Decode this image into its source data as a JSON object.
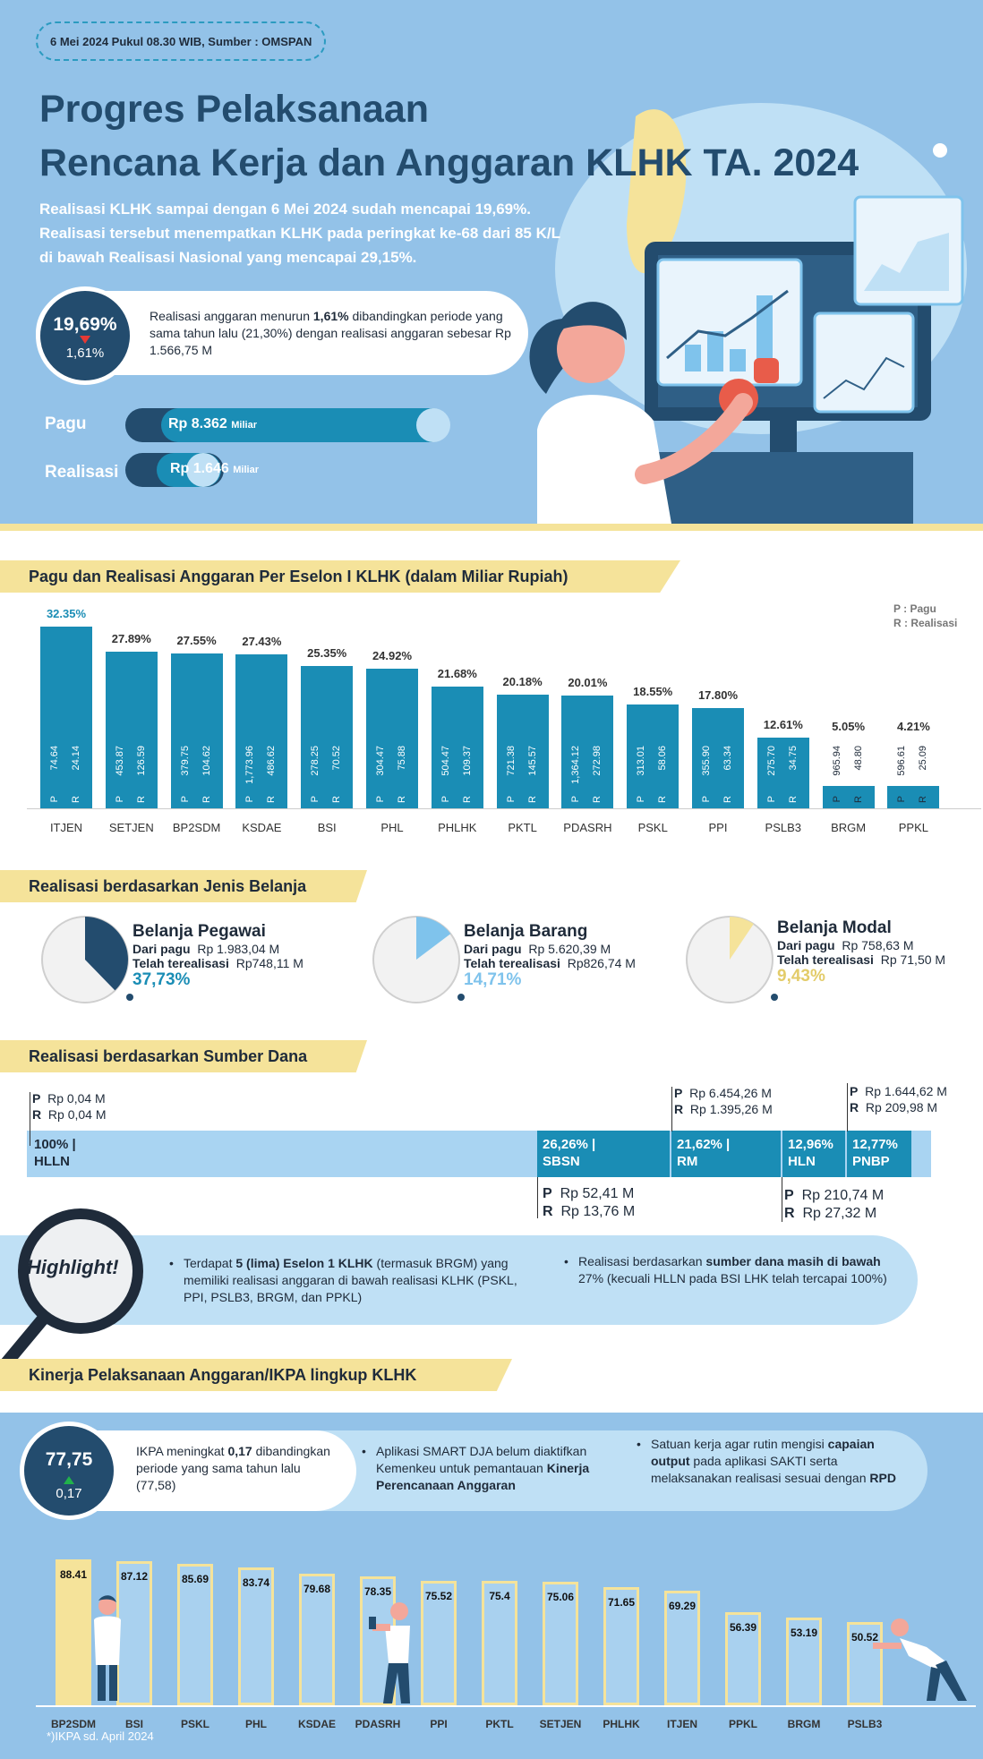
{
  "header": {
    "date_source": "6 Mei 2024 Pukul 08.30 WIB, Sumber : OMSPAN",
    "title_line1": "Progres Pelaksanaan",
    "title_line2": "Rencana Kerja dan Anggaran KLHK TA. 2024",
    "subtitle_line1": "Realisasi KLHK sampai dengan 6 Mei 2024 sudah mencapai 19,69%.",
    "subtitle_line2": "Realisasi tersebut menempatkan KLHK pada peringkat ke-68 dari 85 K/L",
    "subtitle_line3": "di bawah Realisasi Nasional yang mencapai 29,15%."
  },
  "realisasi_kpi": {
    "value": "19,69%",
    "delta": "1,61%",
    "text_pre": "Realisasi  anggaran menurun ",
    "text_bold": "1,61%",
    "text_post": " dibandingkan periode yang sama tahun lalu (21,30%) dengan realisasi anggaran sebesar Rp 1.566,75 M"
  },
  "pagu_bar": {
    "label": "Pagu",
    "value": "Rp 8.362",
    "unit": "Miliar",
    "fill": 1.0
  },
  "realisasi_bar": {
    "label": "Realisasi",
    "value": "Rp 1.646",
    "unit": "Miliar",
    "fill": 0.197
  },
  "eselon_section": {
    "title": "Pagu dan Realisasi Anggaran Per Eselon I KLHK (dalam Miliar Rupiah)",
    "legend_p": "P : Pagu",
    "legend_r": "R : Realisasi",
    "p_letter": "P",
    "r_letter": "R"
  },
  "chart_data": [
    {
      "type": "bar",
      "categories": [
        "ITJEN",
        "SETJEN",
        "BP2SDM",
        "KSDAE",
        "BSI",
        "PHL",
        "PHLHK",
        "PKTL",
        "PDASRH",
        "PSKL",
        "PPI",
        "PSLB3",
        "BRGM",
        "PPKL"
      ],
      "percent_labels": [
        "32.35%",
        "27.89%",
        "27.55%",
        "27.43%",
        "25.35%",
        "24.92%",
        "21.68%",
        "20.18%",
        "20.01%",
        "18.55%",
        "17.80%",
        "12.61%",
        "5.05%",
        "4.21%"
      ],
      "values": [
        32.35,
        27.89,
        27.55,
        27.43,
        25.35,
        24.92,
        21.68,
        20.18,
        20.01,
        18.55,
        17.8,
        12.61,
        5.05,
        4.21
      ],
      "pagu": [
        "74.64",
        "453.87",
        "379.75",
        "1,773.96",
        "278.25",
        "304.47",
        "504.47",
        "721.38",
        "1,364.12",
        "313.01",
        "355.90",
        "275.70",
        "965.94",
        "596.61"
      ],
      "realisasi": [
        "24.14",
        "126.59",
        "104.62",
        "486.62",
        "70.52",
        "75.88",
        "109.37",
        "145.57",
        "272.98",
        "58.06",
        "63.34",
        "34.75",
        "48.80",
        "25.09"
      ]
    },
    {
      "type": "bar",
      "categories": [
        "BP2SDM",
        "BSI",
        "PSKL",
        "PHL",
        "KSDAE",
        "PDASRH",
        "PPI",
        "PKTL",
        "SETJEN",
        "PHLHK",
        "ITJEN",
        "PPKL",
        "BRGM",
        "PSLB3"
      ],
      "values": [
        88.41,
        87.12,
        85.69,
        83.74,
        79.68,
        78.35,
        75.52,
        75.4,
        75.06,
        71.65,
        69.29,
        56.39,
        53.19,
        50.52
      ],
      "value_labels": [
        "88.41",
        "87.12",
        "85.69",
        "83.74",
        "79.68",
        "78.35",
        "75.52",
        "75.4",
        "75.06",
        "71.65",
        "69.29",
        "56.39",
        "53.19",
        "50.52"
      ]
    }
  ],
  "jenis_belanja": {
    "title": "Realisasi berdasarkan Jenis Belanja",
    "dari_pagu_label": "Dari pagu",
    "terealisasi_label": "Telah terealisasi",
    "items": [
      {
        "name": "Belanja Pegawai",
        "pagu": "Rp 1.983,04 M",
        "realisasi": "Rp748,11 M",
        "pct": "37,73%",
        "fraction": 0.3773,
        "color": "#234c6e",
        "pct_color": "#1a8db5"
      },
      {
        "name": "Belanja Barang",
        "pagu": "Rp 5.620,39 M",
        "realisasi": "Rp826,74 M",
        "pct": "14,71%",
        "fraction": 0.1471,
        "color": "#7fc3ec",
        "pct_color": "#7fc3ec"
      },
      {
        "name": "Belanja Modal",
        "pagu": "Rp  758,63  M",
        "realisasi": "Rp 71,50 M",
        "pct": "9,43%",
        "fraction": 0.0943,
        "color": "#f5e39a",
        "pct_color": "#e3cc6a"
      }
    ]
  },
  "sumber_dana": {
    "title": "Realisasi berdasarkan Sumber Dana",
    "hlln_note": {
      "p_label": "P",
      "p_value": "Rp 0,04 M",
      "r_label": "R",
      "r_value": "Rp 0,04 M"
    },
    "segments": [
      {
        "pct": "100% |",
        "name": "HLLN"
      },
      {
        "pct": "26,26% |",
        "name": "SBSN"
      },
      {
        "pct": "21,62% |",
        "name": "RM"
      },
      {
        "pct": "12,96%",
        "name": "HLN"
      },
      {
        "pct": "12,77%",
        "name": "PNBP"
      }
    ],
    "rm_note": {
      "p_value": "Rp  6.454,26 M",
      "r_value": "Rp  1.395,26 M"
    },
    "pnbp_note": {
      "p_value": "Rp 1.644,62  M",
      "r_value": "Rp     209,98 M"
    },
    "sbsn_note": {
      "p_value": "Rp 52,41 M",
      "r_value": "Rp 13,76 M"
    },
    "hln_note": {
      "p_value": "Rp 210,74 M",
      "r_value": "Rp   27,32 M"
    }
  },
  "highlight": {
    "label": "Highlight!",
    "point1_pre": "Terdapat ",
    "point1_bold": "5 (lima) Eselon 1 KLHK",
    "point1_post": " (termasuk BRGM) yang memiliki realisasi anggaran  di bawah realisasi KLHK (PSKL, PPI, PSLB3, BRGM, dan PPKL)",
    "point2_pre": "Realisasi berdasarkan ",
    "point2_bold": "sumber dana masih di bawah",
    "point2_post": " 27% (kecuali HLLN pada BSI LHK telah tercapai 100%)"
  },
  "ikpa": {
    "title": "Kinerja Pelaksanaan Anggaran/IKPA lingkup KLHK",
    "value": "77,75",
    "delta": "0,17",
    "text_pre": "IKPA meningkat ",
    "text_bold": "0,17",
    "text_post": " dibandingkan periode yang sama tahun lalu (77,58)",
    "note2_pre": "Aplikasi SMART DJA belum diaktifkan Kemenkeu untuk pemantauan ",
    "note2_bold": "Kinerja Perencanaan Anggaran",
    "note3_pre": "Satuan kerja agar rutin mengisi ",
    "note3_bold1": "capaian output",
    "note3_mid": " pada aplikasi SAKTI serta melaksanakan realisasi sesuai dengan ",
    "note3_bold2": "RPD",
    "footnote": "*)IKPA sd. April 2024"
  },
  "colors": {
    "navy": "#234c6e",
    "teal": "#1a8db5",
    "yellow": "#f5e39a",
    "sky": "#93c2e8",
    "light": "#bfe0f5"
  }
}
